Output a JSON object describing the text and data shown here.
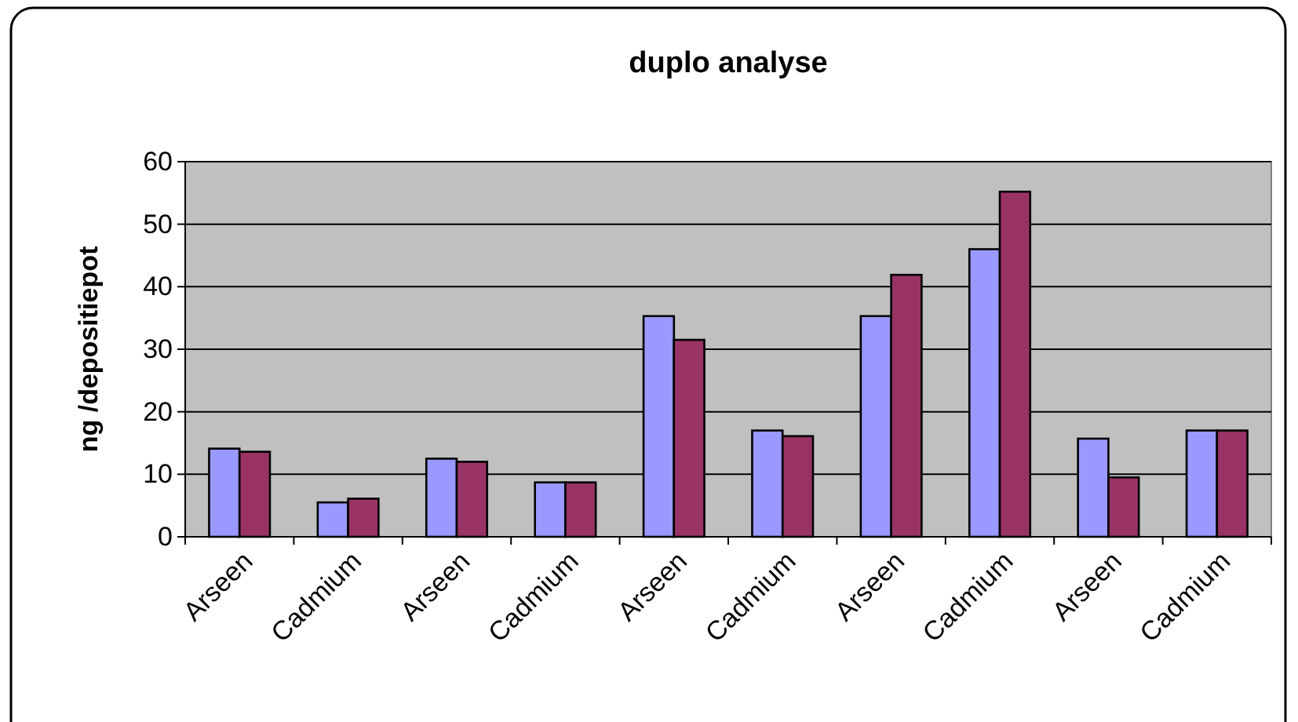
{
  "chart_data": {
    "type": "bar",
    "title": "duplo analyse",
    "ylabel": "ng /depositiepot",
    "categories": [
      "Arseen",
      "Cadmium",
      "Arseen",
      "Cadmium",
      "Arseen",
      "Cadmium",
      "Arseen",
      "Cadmium",
      "Arseen",
      "Cadmium"
    ],
    "series": [
      {
        "color": "#9999ff",
        "values": [
          14.1,
          5.5,
          12.5,
          8.7,
          35.3,
          17.0,
          35.3,
          46.0,
          15.7,
          17.0
        ]
      },
      {
        "color": "#993366",
        "values": [
          13.6,
          6.1,
          12.0,
          8.7,
          31.5,
          16.1,
          41.9,
          55.2,
          9.5,
          17.0
        ]
      }
    ],
    "ylim": [
      0,
      60
    ],
    "yticks": [
      0,
      10,
      20,
      30,
      40,
      50,
      60
    ],
    "grid": "y"
  }
}
